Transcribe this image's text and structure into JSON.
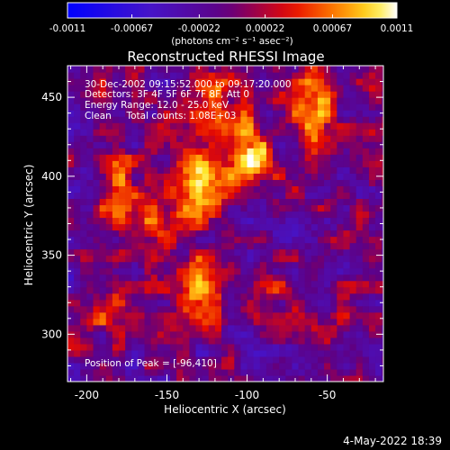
{
  "chart_data": {
    "type": "heatmap",
    "title": "Reconstructed RHESSI Image",
    "xlabel": "Heliocentric X (arcsec)",
    "ylabel": "Heliocentric Y (arcsec)",
    "xlim": [
      -212,
      -15
    ],
    "ylim": [
      270,
      470
    ],
    "xticks": [
      -200,
      -150,
      -100,
      -50
    ],
    "yticks": [
      300,
      350,
      400,
      450
    ],
    "colorbar": {
      "range": [
        -0.0011,
        0.0011
      ],
      "ticks": [
        -0.0011,
        -0.00067,
        -0.00022,
        0.00022,
        0.00067,
        0.0011
      ],
      "tick_labels": [
        "-0.0011",
        "-0.00067",
        "-0.00022",
        "0.00022",
        "0.00067",
        "0.0011"
      ],
      "unit_label": "(photons cm⁻² s⁻¹ asec⁻²)"
    },
    "annotations": [
      "30-Dec-2002 09:15:52.000 to 09:17:20.000",
      "Detectors: 3F 4F 5F 6F 7F 8F, Att 0",
      "Energy Range: 12.0 - 25.0 keV",
      "Clean     Total counts: 1.08E+03"
    ],
    "peak_label": "Position of Peak = [-96,410]",
    "peak": [
      -96,
      410
    ],
    "sources": [
      {
        "x": -96,
        "y": 410,
        "amp": 1.0,
        "sx": 9,
        "sy": 9
      },
      {
        "x": -128,
        "y": 400,
        "amp": 0.75,
        "sx": 14,
        "sy": 16
      },
      {
        "x": -108,
        "y": 432,
        "amp": 0.45,
        "sx": 14,
        "sy": 10
      },
      {
        "x": -58,
        "y": 440,
        "amp": 0.6,
        "sx": 10,
        "sy": 18
      },
      {
        "x": -160,
        "y": 372,
        "amp": 0.45,
        "sx": 22,
        "sy": 12
      },
      {
        "x": -180,
        "y": 395,
        "amp": 0.4,
        "sx": 10,
        "sy": 14
      },
      {
        "x": -130,
        "y": 330,
        "amp": 0.55,
        "sx": 9,
        "sy": 14
      },
      {
        "x": -90,
        "y": 328,
        "amp": 0.4,
        "sx": 10,
        "sy": 12
      },
      {
        "x": -188,
        "y": 310,
        "amp": 0.3,
        "sx": 12,
        "sy": 10
      },
      {
        "x": -40,
        "y": 318,
        "amp": 0.28,
        "sx": 10,
        "sy": 12
      },
      {
        "x": -120,
        "y": 455,
        "amp": 0.3,
        "sx": 12,
        "sy": 8
      },
      {
        "x": -30,
        "y": 375,
        "amp": 0.22,
        "sx": 8,
        "sy": 10
      }
    ],
    "noise_level": 0.38,
    "pixel_arcsec": 4
  },
  "footer": {
    "timestamp": "4-May-2022 18:39"
  }
}
